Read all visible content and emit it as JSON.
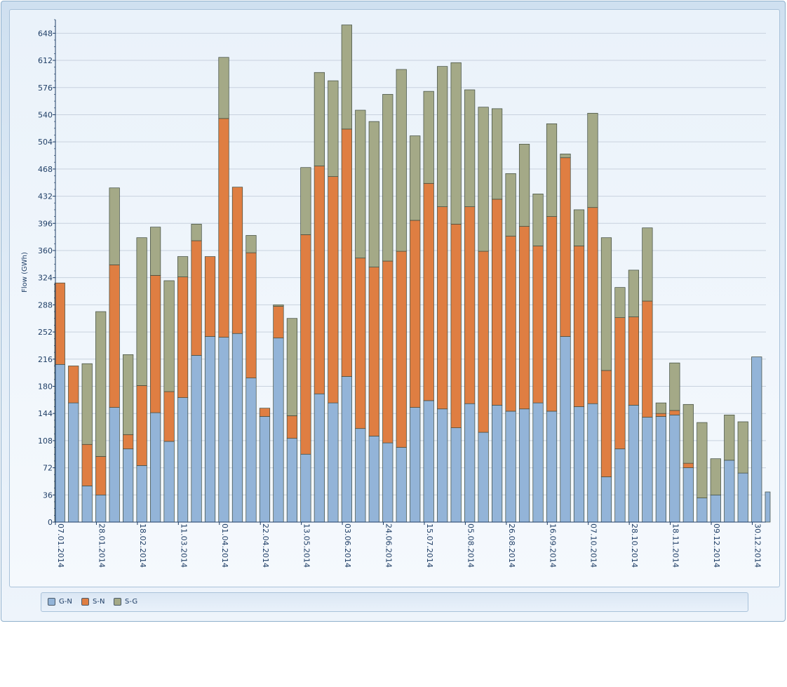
{
  "colors": {
    "gn": "#93b4d8",
    "sn": "#df7e42",
    "sg": "#a4a987",
    "axis": "#1f3e66",
    "grid": "#c8d2de",
    "stroke": "#3e4a3e"
  },
  "legend": {
    "gn": "G-N",
    "sn": "S-N",
    "sg": "S-G"
  },
  "chart_data": {
    "type": "bar",
    "stacked": true,
    "ylabel": "Flow (GWh)",
    "xlabel": "",
    "ylim": [
      0,
      666
    ],
    "yticks": [
      0,
      36,
      72,
      108,
      144,
      180,
      216,
      252,
      288,
      324,
      360,
      396,
      432,
      468,
      504,
      540,
      576,
      612,
      648
    ],
    "x_tick_labels": [
      "07.01.2014",
      "28.01.2014",
      "18.02.2014",
      "11.03.2014",
      "01.04.2014",
      "22.04.2014",
      "13.05.2014",
      "03.06.2014",
      "24.06.2014",
      "15.07.2014",
      "05.08.2014",
      "26.08.2014",
      "16.09.2014",
      "07.10.2014",
      "28.10.2014",
      "18.11.2014",
      "09.12.2014",
      "30.12.2014"
    ],
    "grid": true,
    "legend_position": "bottom",
    "series": [
      {
        "name": "G-N",
        "values": [
          209,
          158,
          48,
          36,
          152,
          97,
          75,
          145,
          107,
          165,
          221,
          246,
          245,
          250,
          191,
          140,
          244,
          111,
          90,
          170,
          158,
          193,
          124,
          114,
          105,
          99,
          152,
          161,
          150,
          125,
          157,
          119,
          155,
          147,
          150,
          158,
          147,
          246,
          153,
          157,
          60,
          97,
          155,
          139,
          140,
          142,
          72,
          32,
          36,
          82,
          65,
          219,
          40
        ]
      },
      {
        "name": "S-N",
        "values": [
          108,
          49,
          55,
          51,
          189,
          19,
          106,
          182,
          66,
          160,
          152,
          106,
          290,
          194,
          166,
          11,
          42,
          30,
          291,
          302,
          300,
          328,
          226,
          224,
          241,
          260,
          248,
          288,
          268,
          270,
          261,
          240,
          273,
          232,
          242,
          208,
          258,
          237,
          213,
          260,
          141,
          174,
          117,
          154,
          4,
          6,
          6,
          0,
          0,
          0,
          0,
          0,
          0
        ]
      },
      {
        "name": "S-G",
        "values": [
          0,
          0,
          107,
          192,
          102,
          106,
          196,
          64,
          147,
          27,
          22,
          0,
          81,
          0,
          23,
          0,
          2,
          129,
          89,
          124,
          127,
          138,
          196,
          193,
          221,
          241,
          112,
          122,
          186,
          214,
          155,
          191,
          120,
          83,
          109,
          69,
          123,
          5,
          48,
          125,
          176,
          40,
          62,
          97,
          14,
          63,
          78,
          100,
          48,
          60,
          68,
          0,
          0
        ]
      }
    ]
  }
}
